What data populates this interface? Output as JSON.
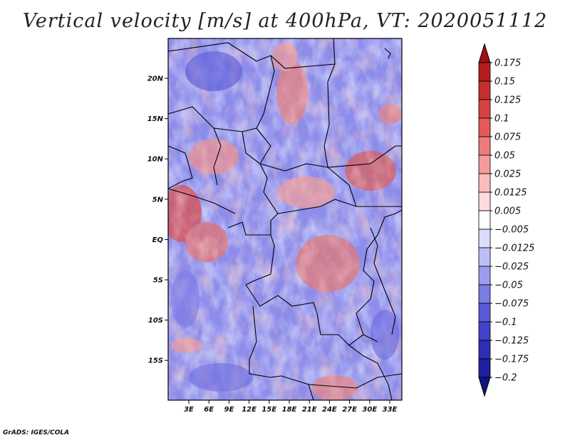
{
  "title": "Vertical velocity [m/s] at 400hPa, VT: 2020051112",
  "credit": "GrADS: IGES/COLA",
  "map": {
    "lat_ticks": [
      "20N",
      "15N",
      "10N",
      "5N",
      "EQ",
      "5S",
      "10S",
      "15S"
    ],
    "lon_ticks": [
      "3E",
      "6E",
      "9E",
      "12E",
      "15E",
      "18E",
      "21E",
      "24E",
      "27E",
      "30E",
      "33E"
    ]
  },
  "colorbar": {
    "labels": [
      "0.175",
      "0.15",
      "0.125",
      "0.1",
      "0.075",
      "0.05",
      "0.025",
      "0.0125",
      "0.005",
      "−0.005",
      "−0.0125",
      "−0.025",
      "−0.05",
      "−0.075",
      "−0.1",
      "−0.125",
      "−0.175",
      "−0.2"
    ],
    "colors": [
      "#a01010",
      "#b21e1e",
      "#c52e2e",
      "#d64242",
      "#e35a5a",
      "#ed7b7b",
      "#f49c9c",
      "#f9bdbd",
      "#fcdcdc",
      "#ffffff",
      "#dcdcfc",
      "#bdbdf7",
      "#9c9cee",
      "#7b7be4",
      "#5a5ad8",
      "#4242c8",
      "#2e2eb4",
      "#1e1e9e",
      "#121280"
    ]
  }
}
